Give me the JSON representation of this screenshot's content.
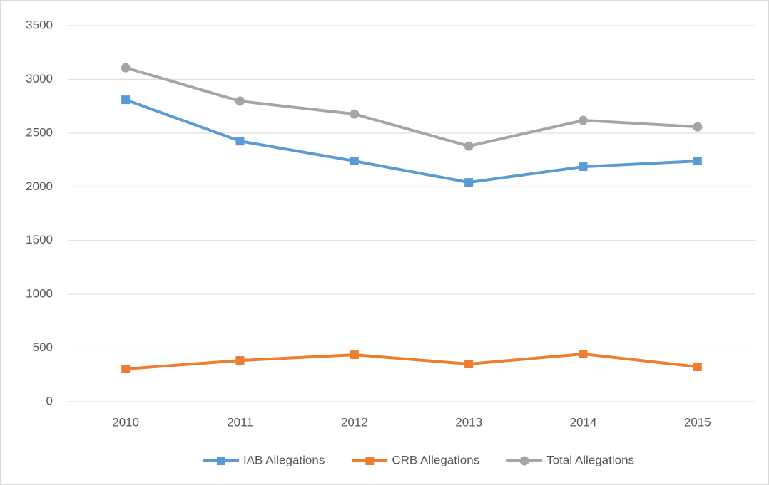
{
  "chart_data": {
    "type": "line",
    "categories": [
      "2010",
      "2011",
      "2012",
      "2013",
      "2014",
      "2015"
    ],
    "series": [
      {
        "name": "IAB Allegations",
        "color": "#5b9bd5",
        "marker": "square",
        "values": [
          2810,
          2425,
          2240,
          2041,
          2187,
          2240
        ]
      },
      {
        "name": "CRB Allegations",
        "color": "#ed7d31",
        "marker": "square",
        "values": [
          305,
          384,
          437,
          351,
          444,
          325
        ]
      },
      {
        "name": "Total Allegations",
        "color": "#a5a5a5",
        "marker": "circle",
        "values": [
          3108,
          2797,
          2677,
          2379,
          2618,
          2558
        ]
      }
    ],
    "ylim": [
      0,
      3500
    ],
    "yticks": [
      0,
      500,
      1000,
      1500,
      2000,
      2500,
      3000,
      3500
    ],
    "grid": true,
    "legend": "bottom"
  }
}
